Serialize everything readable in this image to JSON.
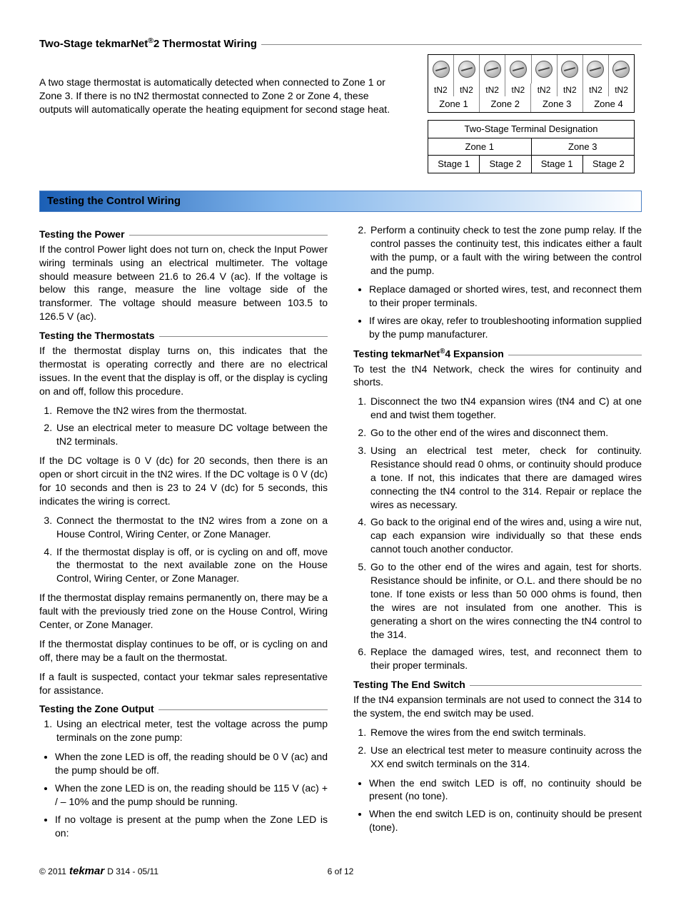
{
  "top": {
    "title_html": "Two-Stage tekmarNet<sup>®</sup>2 Thermostat Wiring",
    "para": "A two stage thermostat is automatically detected when connected to Zone 1 or Zone 3. If there is no tN2 thermostat connected to Zone 2 or Zone 4, these outputs will automatically operate the heating equipment for second stage heat.",
    "tn2_labels": [
      "tN2",
      "tN2",
      "tN2",
      "tN2",
      "tN2",
      "tN2",
      "tN2",
      "tN2"
    ],
    "zones": [
      "Zone 1",
      "Zone 2",
      "Zone 3",
      "Zone 4"
    ],
    "stage_header": "Two-Stage Terminal Designation",
    "stage_zones": [
      "Zone 1",
      "Zone 3"
    ],
    "stages": [
      "Stage 1",
      "Stage 2",
      "Stage 1",
      "Stage 2"
    ]
  },
  "bluebar": "Testing the Control Wiring",
  "s_power": {
    "title": "Testing the Power",
    "p": "If the control Power light does not turn on, check the Input Power wiring terminals using an electrical multimeter. The voltage should measure between 21.6 to 26.4 V (ac). If the voltage is below this range, measure the line voltage side of the transformer. The voltage should measure between 103.5 to 126.5 V (ac)."
  },
  "s_thermo": {
    "title": "Testing the Thermostats",
    "p1": "If the thermostat display turns on, this indicates that the thermostat is operating correctly and there are no electrical issues. In the event that the display is off, or the display is cycling on and off, follow this procedure.",
    "ol1_1": "Remove the tN2 wires from the thermostat.",
    "ol1_2": "Use an electrical meter to measure DC voltage between the tN2 terminals.",
    "p2": "If the DC voltage is 0 V (dc) for 20 seconds, then there is an open or short circuit in the tN2 wires. If the DC voltage is 0 V (dc) for 10 seconds and then is 23 to 24 V (dc) for 5 seconds, this indicates the wiring is correct.",
    "ol2_3": "Connect the thermostat to the tN2 wires from a zone on a House Control, Wiring Center, or Zone Manager.",
    "ol2_4": "If the thermostat display is off, or is cycling on and off, move the thermostat to the next available zone on the House Control, Wiring Center, or Zone Manager.",
    "p3": "If the thermostat display remains permanently on, there may be a fault with the previously tried zone on the House Control, Wiring Center, or Zone Manager.",
    "p4": "If the thermostat display continues to be off, or is cycling on and off, there may be a fault on the thermostat.",
    "p5": "If a fault is suspected, contact your tekmar sales representative for assistance."
  },
  "s_zone": {
    "title": "Testing the Zone Output",
    "ol1": "Using an electrical meter, test the voltage across the pump terminals on the zone pump:",
    "b1": "When the zone LED is off, the reading should be 0 V (ac) and the pump should be off.",
    "b2": "When the zone LED is on, the reading should be 115 V (ac) + / – 10% and the pump should be running.",
    "b3": "If no voltage is present at the pump when the Zone LED is on:",
    "ol2": "Perform a continuity check to test the zone pump relay. If the control passes the continuity test, this indicates either a fault with the pump, or a fault with the wiring between the control and the pump.",
    "b4": "Replace damaged or shorted wires, test, and reconnect them to their proper terminals.",
    "b5": "If wires are okay, refer to troubleshooting information supplied by the pump manufacturer."
  },
  "s_exp": {
    "title_html": "Testing tekmarNet<sup>®</sup>4 Expansion",
    "p1": "To test the tN4 Network, check the wires for continuity and shorts.",
    "o1": "Disconnect the two tN4 expansion wires (tN4 and C) at one end and twist them together.",
    "o2": "Go to the other end of the wires and disconnect them.",
    "o3": "Using an electrical test meter, check for continuity. Resistance should read 0 ohms, or continuity should produce a tone. If not, this indicates that there are damaged wires connecting the tN4 control to the 314. Repair or replace the wires as necessary.",
    "o4": "Go back to the original end of the wires and, using a wire nut, cap each expansion wire individually so that these ends cannot touch another conductor.",
    "o5": "Go to the other end of the wires and again, test for shorts. Resistance should be infinite, or O.L. and there should be no tone. If tone exists or less than 50 000 ohms is found, then the wires are not insulated from one another. This is generating a short on the wires connecting the tN4 control to the 314.",
    "o6": "Replace the damaged wires, test, and reconnect them to their proper terminals."
  },
  "s_end": {
    "title": "Testing The End Switch",
    "p1": "If the tN4 expansion terminals are not used to connect the 314 to the system, the end switch may be used.",
    "o1": "Remove the wires from the end switch terminals.",
    "o2": "Use an electrical test meter to measure continuity across the XX end switch terminals on the 314.",
    "b1": "When the end switch LED is off, no continuity should be present (no tone).",
    "b2": "When the end switch LED is on, continuity should be present (tone)."
  },
  "footer": {
    "copyright": "© 2011",
    "brand": "tekmar",
    "doc": "D 314 - 05/11",
    "page": "6 of 12"
  }
}
